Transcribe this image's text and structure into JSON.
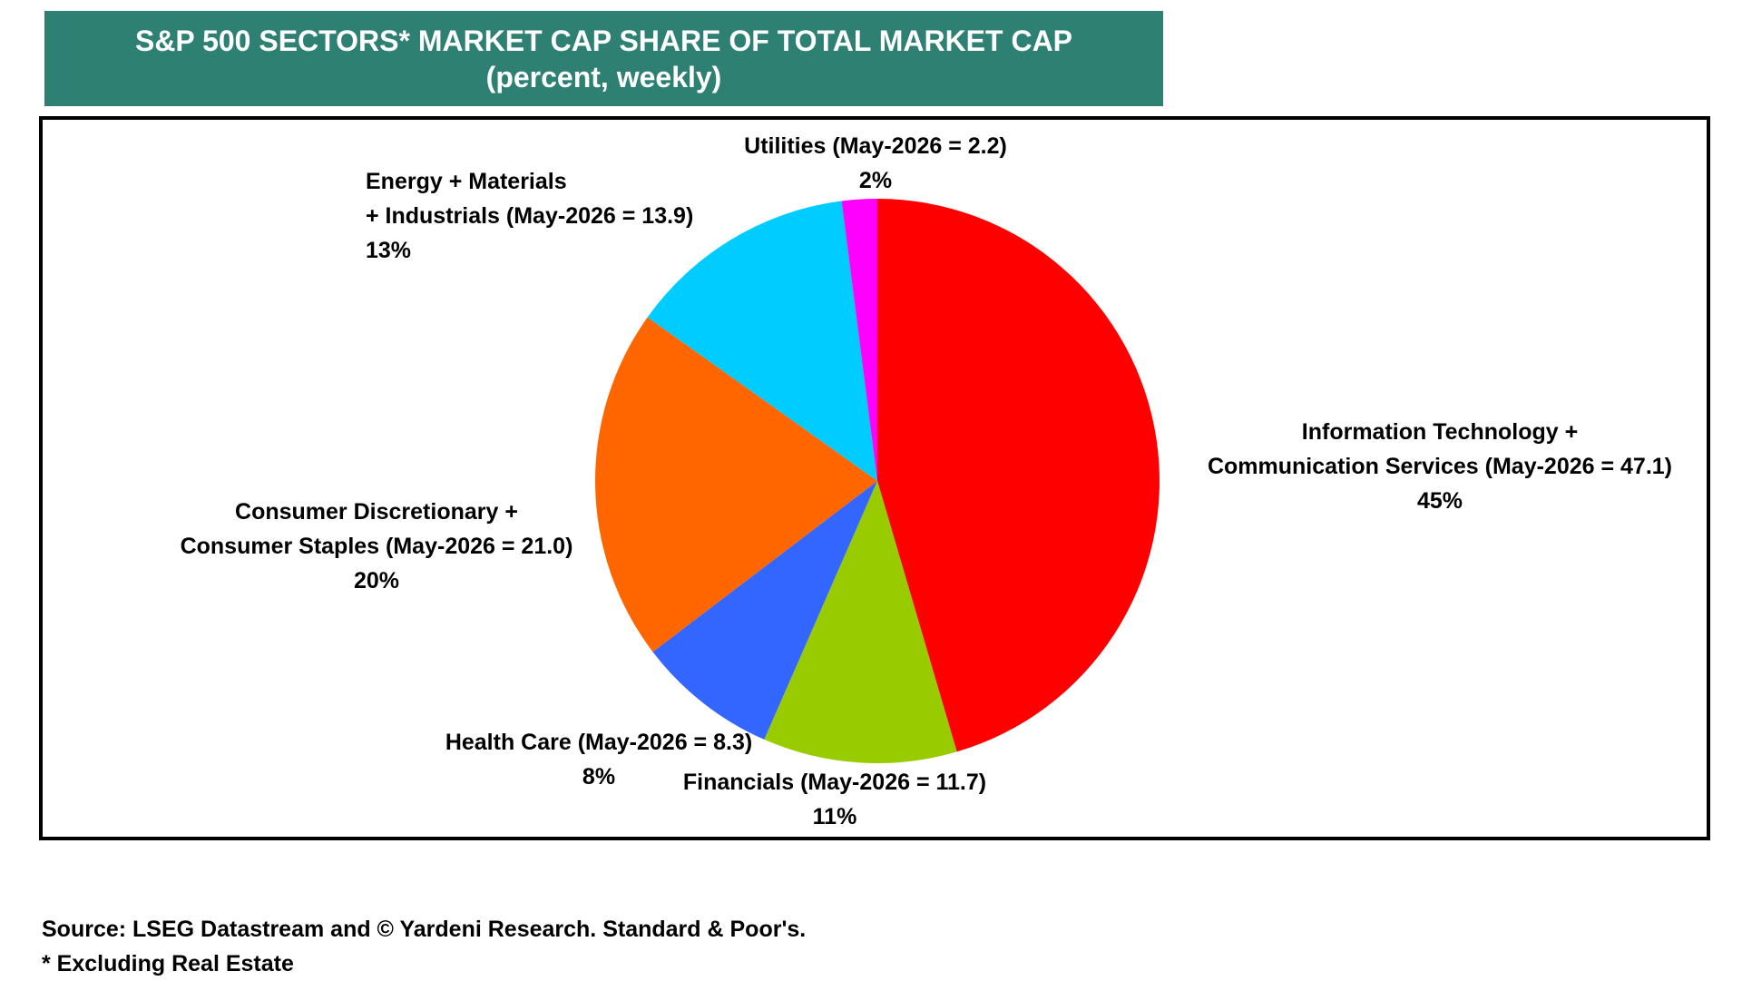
{
  "header": {
    "title": "S&P 500 SECTORS* MARKET CAP SHARE OF TOTAL MARKET CAP",
    "subtitle": "(percent, weekly)"
  },
  "chart_data": {
    "type": "pie",
    "title": "S&P 500 SECTORS* MARKET CAP SHARE OF TOTAL MARKET CAP",
    "subtitle": "(percent, weekly)",
    "slices": [
      {
        "label_lines": [
          "Information Technology +",
          "Communication Services (May-2026 = 47.1)"
        ],
        "value": 45,
        "display": "45%",
        "color": "#ff0000"
      },
      {
        "label_lines": [
          "Financials (May-2026 = 11.7)"
        ],
        "value": 11,
        "display": "11%",
        "color": "#99cc00"
      },
      {
        "label_lines": [
          "Health Care (May-2026 = 8.3)"
        ],
        "value": 8,
        "display": "8%",
        "color": "#3366ff"
      },
      {
        "label_lines": [
          "Consumer Discretionary +",
          "Consumer Staples (May-2026 = 21.0)"
        ],
        "value": 20,
        "display": "20%",
        "color": "#ff6600"
      },
      {
        "label_lines": [
          "Energy + Materials",
          "+ Industrials (May-2026 = 13.9)"
        ],
        "value": 13,
        "display": "13%",
        "color": "#00ccff"
      },
      {
        "label_lines": [
          "Utilities (May-2026 = 2.2)"
        ],
        "value": 2,
        "display": "2%",
        "color": "#ff00ff"
      }
    ]
  },
  "footer": {
    "source": "Source: LSEG Datastream and © Yardeni Research. Standard & Poor's.",
    "note": "* Excluding Real Estate"
  }
}
